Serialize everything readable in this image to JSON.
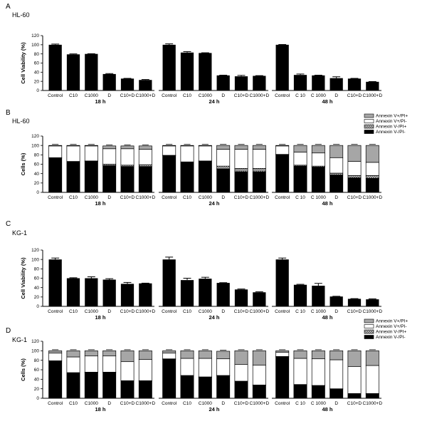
{
  "colors": {
    "solid": "#000000",
    "bar_open": "#ffffff",
    "bar_grey": "#a6a6a6",
    "hatch": "#777777",
    "axis": "#000000"
  },
  "chart_data": [
    {
      "panel": "A",
      "title": "HL-60",
      "type": "bar",
      "ylabel": "Cell Viability (%)",
      "ylim": [
        0,
        120
      ],
      "yticks": [
        0,
        20,
        40,
        60,
        80,
        100,
        120
      ],
      "groups": [
        {
          "label": "18 h",
          "categories": [
            "Control",
            "C10",
            "C1000",
            "D",
            "C10+D",
            "C1000+D"
          ],
          "values": [
            100,
            79,
            80,
            36,
            26,
            23
          ],
          "errors": [
            1.5,
            1,
            0.5,
            1,
            0.5,
            1
          ]
        },
        {
          "label": "24 h",
          "categories": [
            "Control",
            "C10",
            "C1000",
            "D",
            "C10+D",
            "C1000+D"
          ],
          "values": [
            100,
            83,
            82,
            33,
            31,
            32
          ],
          "errors": [
            2,
            2,
            0.5,
            0.5,
            2,
            0.5
          ]
        },
        {
          "label": "48 h",
          "categories": [
            "Control",
            "C 10",
            "C 1000",
            "D",
            "C10+D",
            "C1000+D"
          ],
          "values": [
            100,
            34,
            33,
            27,
            26,
            19
          ],
          "errors": [
            0.5,
            2,
            0.5,
            3,
            0.5,
            0.5
          ]
        }
      ]
    },
    {
      "panel": "B",
      "title": "HL-60",
      "type": "stacked_bar",
      "ylabel": "Cells (%)",
      "ylim": [
        0,
        120
      ],
      "yticks": [
        0,
        20,
        40,
        60,
        80,
        100,
        120
      ],
      "legend": [
        "Annexin V+/PI+",
        "Annexin V+/PI-",
        "Annexin V-/PI+",
        "Annexin V-/PI-"
      ],
      "groups": [
        {
          "label": "18 h",
          "categories": [
            "Control",
            "C10",
            "C1000",
            "D",
            "C10+D",
            "C1000+D"
          ],
          "viable": [
            73,
            65,
            66,
            57,
            55,
            55
          ],
          "necrotic": [
            1,
            1,
            1,
            3,
            3,
            4
          ],
          "early": [
            25,
            33,
            32,
            33,
            35,
            33
          ],
          "late": [
            1,
            1,
            1,
            6,
            6,
            7
          ]
        },
        {
          "label": "24 h",
          "categories": [
            "Control",
            "C10",
            "C1000",
            "D",
            "C10+D",
            "C1000+D"
          ],
          "viable": [
            78,
            65,
            67,
            50,
            44,
            44
          ],
          "necrotic": [
            1,
            0,
            0,
            6,
            7,
            7
          ],
          "early": [
            20,
            34,
            32,
            36,
            41,
            41
          ],
          "late": [
            1,
            1,
            1,
            8,
            8,
            8
          ]
        },
        {
          "label": "48 h",
          "categories": [
            "Control",
            "C 10",
            "C 1000",
            "D",
            "C10+D",
            "C1000+D"
          ],
          "viable": [
            80,
            56,
            54,
            37,
            31,
            30
          ],
          "necrotic": [
            1,
            2,
            2,
            4,
            5,
            6
          ],
          "early": [
            18,
            28,
            28,
            33,
            30,
            28
          ],
          "late": [
            1,
            14,
            16,
            26,
            34,
            36
          ]
        }
      ]
    },
    {
      "panel": "C",
      "title": "KG-1",
      "type": "bar",
      "ylabel": "Cell Viability (%)",
      "ylim": [
        0,
        120
      ],
      "yticks": [
        0,
        20,
        40,
        60,
        80,
        100,
        120
      ],
      "groups": [
        {
          "label": "18 h",
          "categories": [
            "Control",
            "C10",
            "C1000",
            "D",
            "C10+D",
            "C1000+D"
          ],
          "values": [
            100,
            60,
            60,
            57,
            48,
            49
          ],
          "errors": [
            3,
            1,
            3,
            2,
            3,
            0.5
          ]
        },
        {
          "label": "24 h",
          "categories": [
            "Control",
            "C10",
            "C1000",
            "D",
            "C10+D",
            "C1000+D"
          ],
          "values": [
            100,
            56,
            59,
            50,
            36,
            30
          ],
          "errors": [
            5,
            4,
            3,
            0.5,
            1,
            1
          ]
        },
        {
          "label": "48 h",
          "categories": [
            "Control",
            "C 10",
            "C 1000",
            "D",
            "C10+D",
            "C1000+D"
          ],
          "values": [
            100,
            46,
            44,
            21,
            16,
            15
          ],
          "errors": [
            3,
            1,
            5,
            0.5,
            0.5,
            1
          ]
        }
      ]
    },
    {
      "panel": "D",
      "title": "KG-1",
      "type": "stacked_bar",
      "ylabel": "Cells (%)",
      "ylim": [
        0,
        120
      ],
      "yticks": [
        0,
        20,
        40,
        60,
        80,
        100,
        120
      ],
      "legend": [
        "Annexin V+/PI+",
        "Annexin V+/PI-",
        "Annexin V-/PI+",
        "Annexin V-/PI-"
      ],
      "groups": [
        {
          "label": "18 h",
          "categories": [
            "Control",
            "C10",
            "C1000",
            "D",
            "C10+D",
            "C1000+D"
          ],
          "viable": [
            78,
            53,
            54,
            54,
            36,
            36
          ],
          "necrotic": [
            1,
            1,
            1,
            1,
            1,
            1
          ],
          "early": [
            16,
            33,
            34,
            34,
            40,
            45
          ],
          "late": [
            5,
            13,
            11,
            11,
            23,
            18
          ]
        },
        {
          "label": "24 h",
          "categories": [
            "Control",
            "C10",
            "C1000",
            "D",
            "C10+D",
            "C1000+D"
          ],
          "viable": [
            82,
            47,
            44,
            47,
            35,
            27
          ],
          "necrotic": [
            1,
            1,
            1,
            1,
            1,
            1
          ],
          "early": [
            12,
            36,
            39,
            35,
            35,
            42
          ],
          "late": [
            5,
            16,
            16,
            16,
            29,
            30
          ]
        },
        {
          "label": "48 h",
          "categories": [
            "Control",
            "C 10",
            "C 1000",
            "D",
            "C10+D",
            "C1000+D"
          ],
          "viable": [
            87,
            28,
            26,
            19,
            9,
            9
          ],
          "necrotic": [
            1,
            1,
            1,
            1,
            1,
            1
          ],
          "early": [
            9,
            55,
            56,
            61,
            57,
            59
          ],
          "late": [
            3,
            16,
            17,
            19,
            33,
            31
          ]
        }
      ]
    }
  ]
}
